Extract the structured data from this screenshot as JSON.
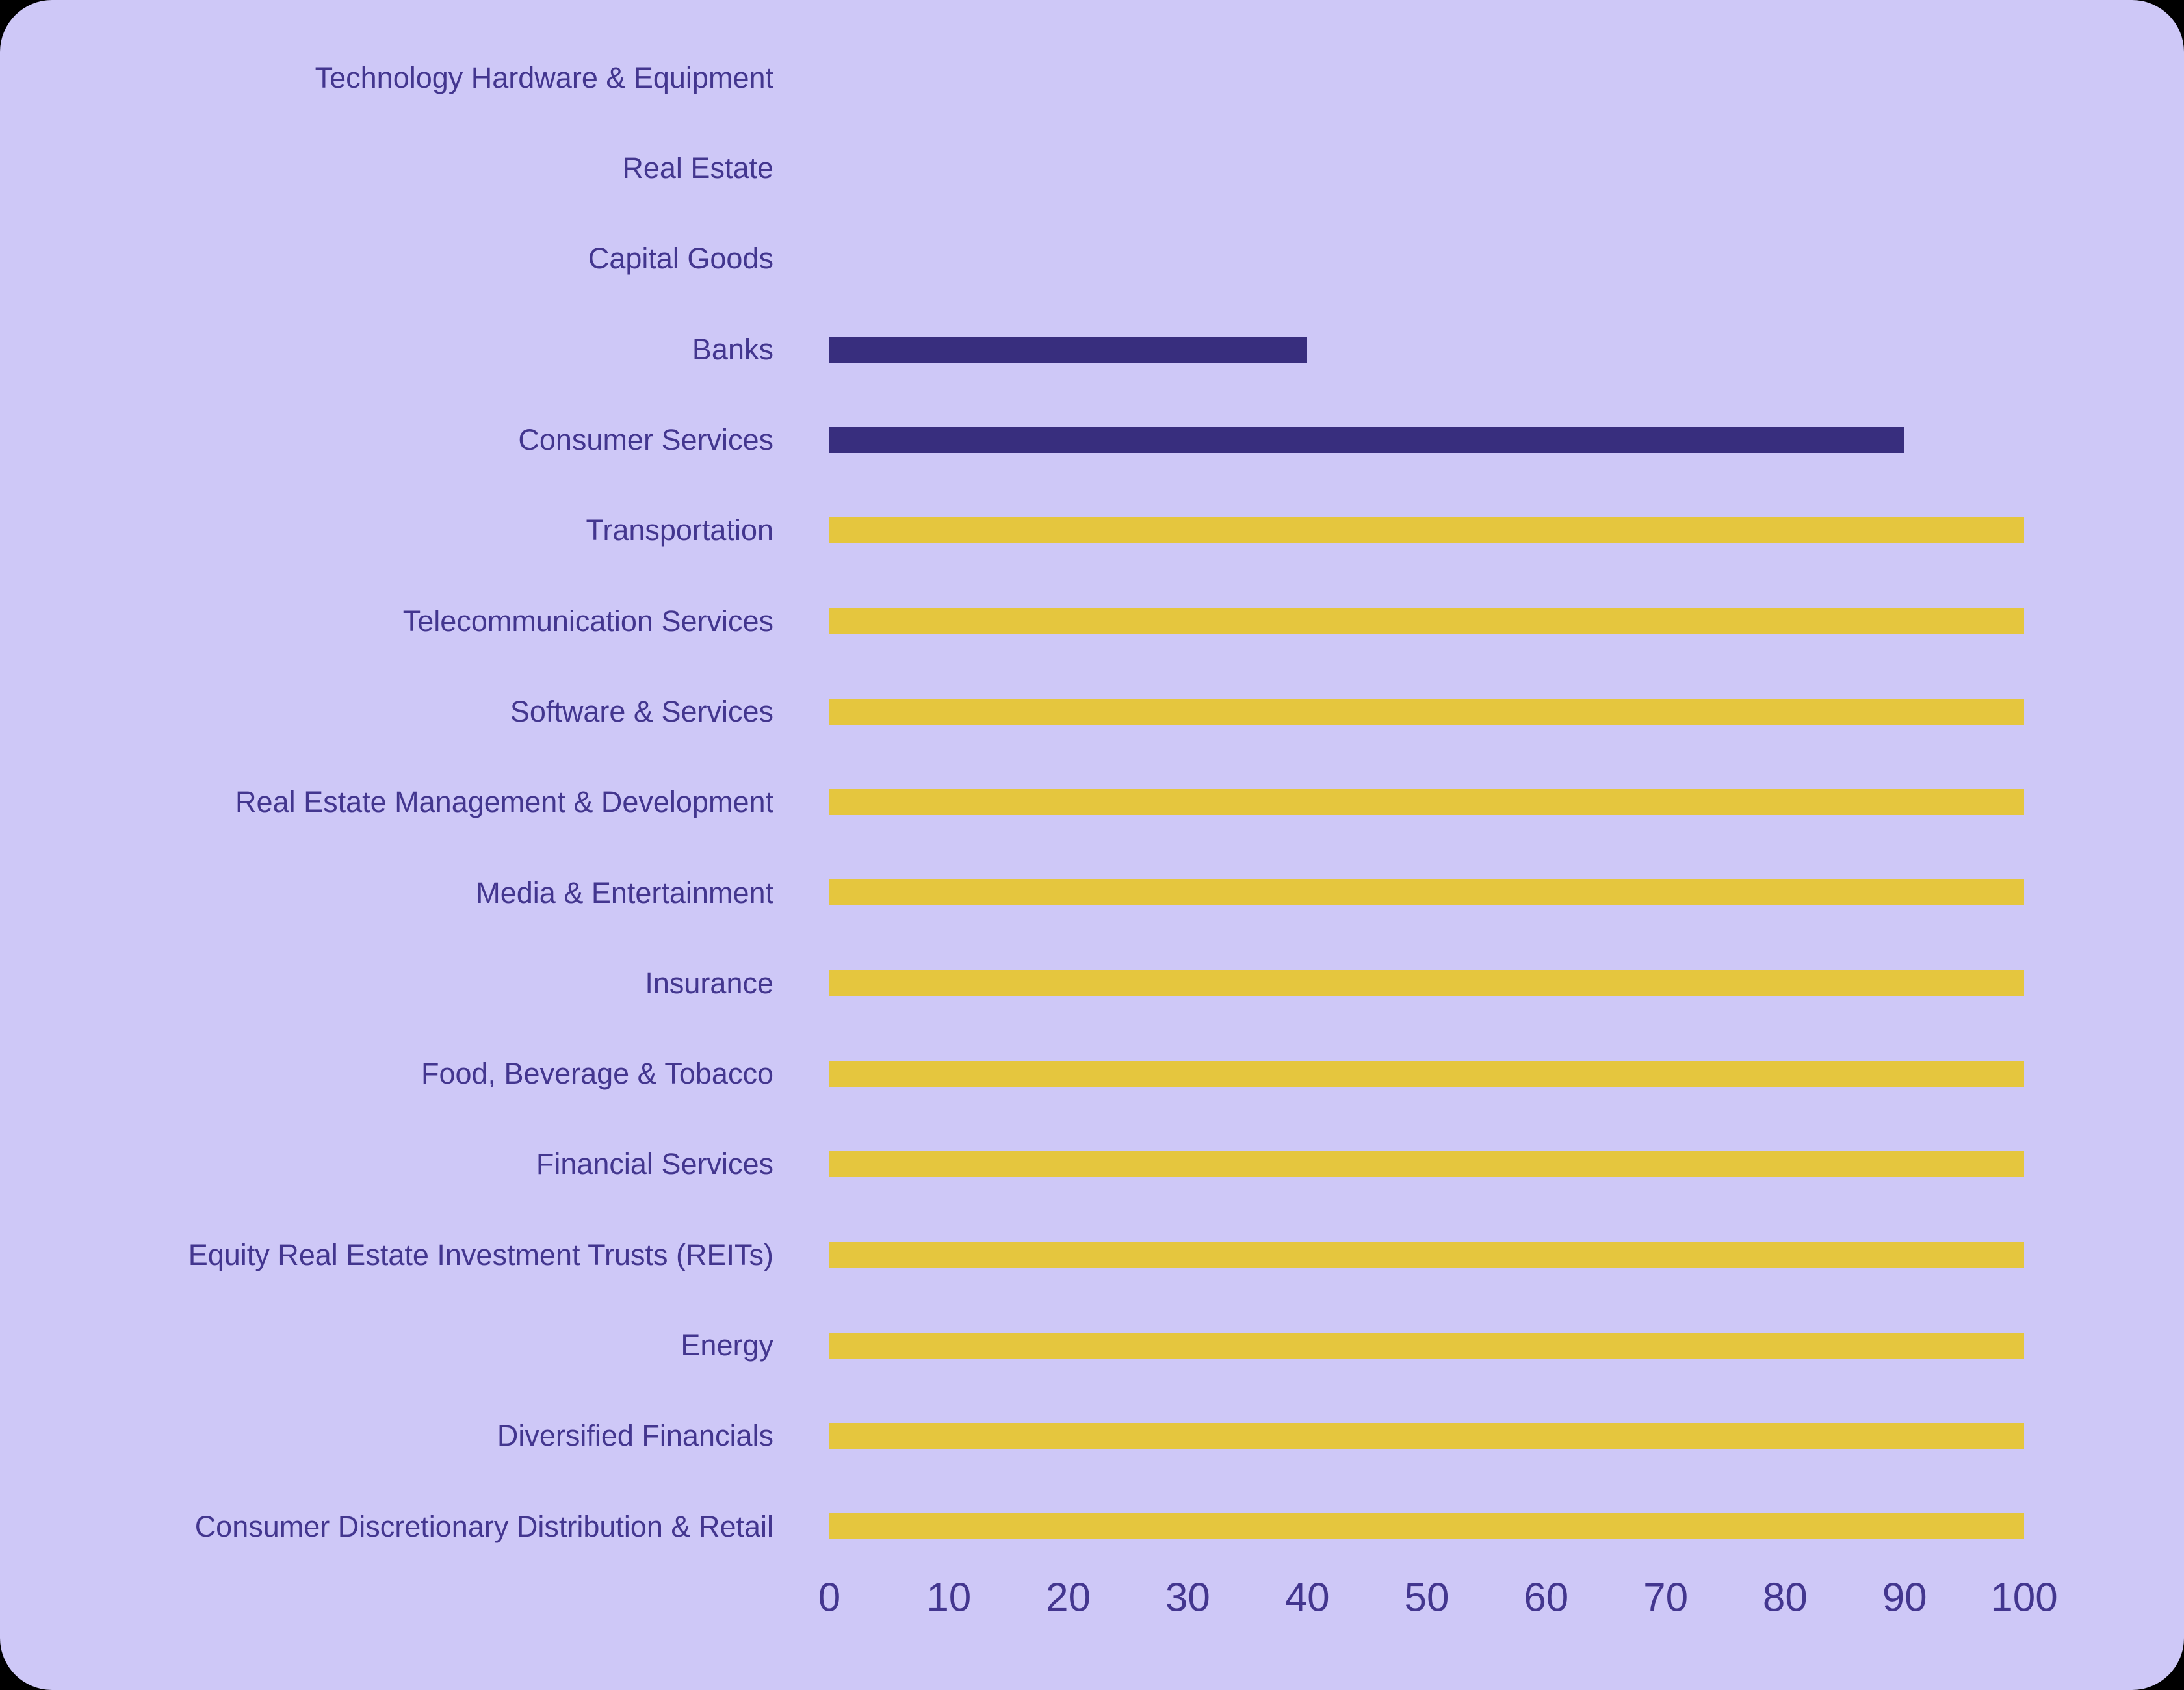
{
  "colors": {
    "page_outside": "#000000",
    "card_background": "#cec8f7",
    "bar_yellow": "#e5c63e",
    "bar_indigo": "#382e7e",
    "label_text": "#43368f",
    "tick_text": "#43368f"
  },
  "chart_data": {
    "type": "bar",
    "orientation": "horizontal",
    "title": "",
    "xlabel": "",
    "ylabel": "",
    "xlim": [
      0,
      100
    ],
    "x_ticks": [
      "0",
      "10",
      "20",
      "30",
      "40",
      "50",
      "60",
      "70",
      "80",
      "90",
      "100"
    ],
    "grid": false,
    "legend": false,
    "categories": [
      "Technology Hardware & Equipment",
      "Real Estate",
      "Capital Goods",
      "Banks",
      "Consumer Services",
      "Transportation",
      "Telecommunication Services",
      "Software & Services",
      "Real Estate Management & Development",
      "Media & Entertainment",
      "Insurance",
      "Food, Beverage & Tobacco",
      "Financial Services",
      "Equity Real Estate Investment Trusts (REITs)",
      "Energy",
      "Diversified Financials",
      "Consumer Discretionary Distribution & Retail"
    ],
    "values": [
      0,
      0,
      0,
      40,
      90,
      100,
      100,
      100,
      100,
      100,
      100,
      100,
      100,
      100,
      100,
      100,
      100
    ],
    "bar_colors": [
      "#382e7e",
      "#382e7e",
      "#382e7e",
      "#382e7e",
      "#382e7e",
      "#e5c63e",
      "#e5c63e",
      "#e5c63e",
      "#e5c63e",
      "#e5c63e",
      "#e5c63e",
      "#e5c63e",
      "#e5c63e",
      "#e5c63e",
      "#e5c63e",
      "#e5c63e",
      "#e5c63e"
    ]
  }
}
